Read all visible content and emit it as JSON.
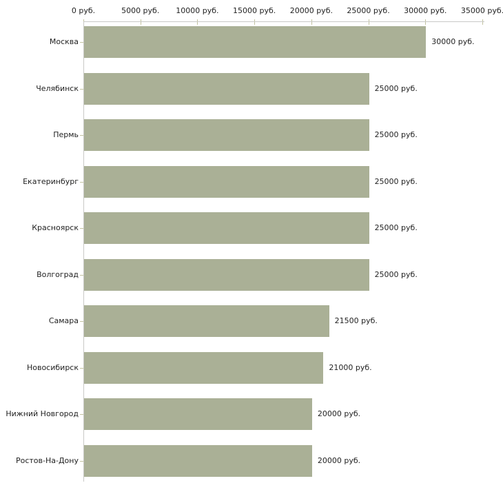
{
  "chart_data": {
    "type": "bar",
    "orientation": "horizontal",
    "title": "",
    "xlabel": "",
    "ylabel": "",
    "unit": "руб.",
    "xlim": [
      0,
      35000
    ],
    "grid": false,
    "legend": "none",
    "categories": [
      "Москва",
      "Челябинск",
      "Пермь",
      "Екатеринбург",
      "Красноярск",
      "Волгоград",
      "Самара",
      "Новосибирск",
      "Нижний Новгород",
      "Ростов-На-Дону"
    ],
    "values": [
      30000,
      25000,
      25000,
      25000,
      25000,
      25000,
      21500,
      21000,
      20000,
      20000
    ],
    "value_labels": [
      "30000 руб.",
      "25000 руб.",
      "25000 руб.",
      "25000 руб.",
      "25000 руб.",
      "25000 руб.",
      "21500 руб.",
      "21000 руб.",
      "20000 руб.",
      "20000 руб."
    ],
    "x_ticks": [
      {
        "value": 0,
        "label": "0 руб."
      },
      {
        "value": 5000,
        "label": "5000 руб."
      },
      {
        "value": 10000,
        "label": "10000 руб."
      },
      {
        "value": 15000,
        "label": "15000 руб."
      },
      {
        "value": 20000,
        "label": "20000 руб."
      },
      {
        "value": 25000,
        "label": "25000 руб."
      },
      {
        "value": 30000,
        "label": "30000 руб."
      },
      {
        "value": 35000,
        "label": "35000 руб."
      }
    ],
    "colors": {
      "bar": "#aab096",
      "axis": "#c9c9c6",
      "tick": "#c3c3a0",
      "background": "#ffffff",
      "text": "#222222"
    }
  }
}
